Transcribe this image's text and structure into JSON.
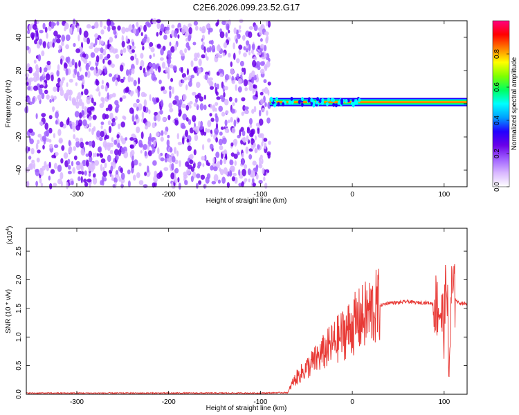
{
  "figure_title": "C2E6.2026.099.23.52.G17",
  "colors": {
    "snr_line": "#e83a36",
    "colormap": [
      "#ffffff",
      "#d9b8ff",
      "#a060ff",
      "#6a00e8",
      "#2200ff",
      "#00a0ff",
      "#00ffff",
      "#00ff60",
      "#80ff00",
      "#ffff00",
      "#ff8000",
      "#ff0000",
      "#ff0080"
    ]
  },
  "chart_data": [
    {
      "type": "heatmap",
      "xlabel": "Height of straight line (km)",
      "ylabel": "Frequency (Hz)",
      "xlim": [
        -355,
        125
      ],
      "ylim": [
        -50,
        50
      ],
      "x_ticks": [
        -300,
        -200,
        -100,
        0,
        100
      ],
      "y_ticks": [
        -40,
        -20,
        0,
        20,
        40
      ],
      "noise_region_x": [
        -355,
        -90
      ],
      "signal_band": {
        "x_range": [
          -90,
          125
        ],
        "frequency_hz": 1,
        "noise_floor_amplitude": 0.15
      },
      "colorbar": {
        "label": "Normalized spectral amplitude",
        "range": [
          0,
          1
        ],
        "ticks": [
          0.0,
          0.2,
          0.4,
          0.6,
          0.8
        ]
      }
    },
    {
      "type": "line",
      "xlabel": "Height of straight line (km)",
      "ylabel": "SNR (10 * v/v)",
      "scale_note": "(x10",
      "scale_exponent": "4",
      "xlim": [
        -355,
        125
      ],
      "ylim": [
        0,
        2.9
      ],
      "x_ticks": [
        -300,
        -200,
        -100,
        0,
        100
      ],
      "y_ticks": [
        0.0,
        0.5,
        1.0,
        1.5,
        2.0,
        2.5
      ],
      "series": [
        {
          "x": [
            -355,
            -100,
            -70,
            -65,
            -60,
            -50,
            -40,
            -30,
            -20,
            -10,
            0,
            10,
            20,
            30,
            40,
            50,
            60,
            70,
            80,
            90,
            95,
            100,
            103,
            105,
            108,
            115,
            125
          ],
          "y": [
            0.02,
            0.02,
            0.03,
            0.2,
            0.3,
            0.45,
            0.6,
            0.75,
            0.9,
            1.05,
            1.2,
            1.32,
            1.45,
            1.55,
            1.6,
            1.6,
            1.62,
            1.6,
            1.6,
            1.58,
            1.5,
            1.2,
            2.2,
            0.2,
            1.8,
            1.6,
            1.58
          ]
        }
      ]
    }
  ]
}
